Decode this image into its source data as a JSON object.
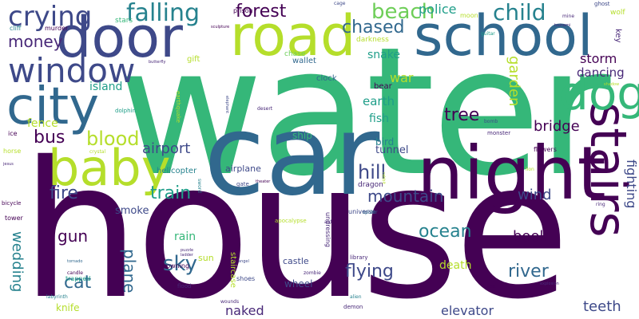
{
  "palette": {
    "dark_purple": "#440154",
    "indigo": "#482878",
    "slate_blue": "#3e4989",
    "steel_blue": "#31688e",
    "teal": "#26828e",
    "sea_green": "#1f9e89",
    "green": "#35b779",
    "lime": "#6ece58",
    "chartreuse": "#b5de2b",
    "yellow": "#fde725"
  },
  "words": [
    "house",
    "water",
    "car",
    "night",
    "door",
    "road",
    "school",
    "city",
    "baby",
    "stairs",
    "dog",
    "window",
    "crying",
    "falling",
    "forest",
    "beach",
    "child",
    "chased",
    "police",
    "money",
    "blood",
    "bus",
    "fire",
    "train",
    "hill",
    "mountain",
    "tree",
    "bridge",
    "airport",
    "garden",
    "earth",
    "fish",
    "storm",
    "dancing",
    "war",
    "snake",
    "island",
    "fence",
    "ocean",
    "book",
    "river",
    "flying",
    "sky",
    "gun",
    "cat",
    "plane",
    "wedding",
    "wind",
    "teeth",
    "elevator",
    "naked",
    "death",
    "fighting",
    "rain",
    "smoke",
    "bird",
    "tunnel",
    "ship",
    "airplane",
    "helicopter",
    "dragon",
    "castle",
    "wheel",
    "knife",
    "sun",
    "staircase",
    "wallet",
    "clock",
    "bear",
    "gift",
    "darkness",
    "chase",
    "moon",
    "stars",
    "prison",
    "cliff",
    "murder",
    "tower",
    "bicycle",
    "horse",
    "ice",
    "trapped",
    "drowning",
    "sword",
    "puzzle",
    "ladder",
    "theater",
    "gate",
    "universe",
    "apocalypse",
    "zombie",
    "library",
    "shoes",
    "wounds",
    "flood",
    "alien",
    "demon",
    "fox",
    "monster",
    "flowers",
    "lion",
    "ghost",
    "mine",
    "tsunami",
    "guitar",
    "key",
    "wolf",
    "cage",
    "candle",
    "spider",
    "angel",
    "earthquake",
    "desert",
    "elephant",
    "jesus",
    "rabbit",
    "explosion",
    "shadow",
    "dolphin",
    "bomb",
    "butterfly",
    "tornado",
    "undressing",
    "ant",
    "labyrinth",
    "crystal",
    "ring",
    "sculpture"
  ]
}
